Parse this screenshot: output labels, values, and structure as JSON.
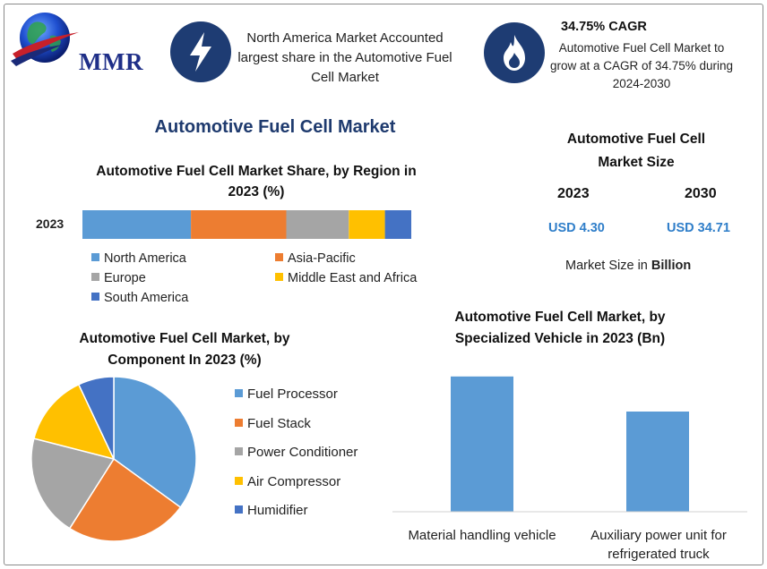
{
  "logo": {
    "text": "MMR",
    "icon": "globe-icon"
  },
  "header": {
    "left_icon": "lightning-bolt-icon",
    "left_text": "North America Market Accounted largest share in the Automotive Fuel Cell Market",
    "right_icon": "flame-icon",
    "right_title": "34.75% CAGR",
    "right_text": "Automotive Fuel Cell Market to grow at a CAGR of 34.75% during 2024-2030"
  },
  "main_title": "Automotive Fuel Cell Market",
  "market_size": {
    "title": "Automotive Fuel Cell Market Size",
    "year_a": "2023",
    "year_b": "2030",
    "value_a": "USD 4.30",
    "value_b": "USD 34.71",
    "note_prefix": "Market Size in ",
    "note_bold": "Billion"
  },
  "colors": {
    "blue": "#5b9bd5",
    "orange": "#ed7d31",
    "gray": "#a5a5a5",
    "yellow": "#ffc000",
    "dark_blue": "#4472c4",
    "navy": "#1e3c73",
    "value_blue": "#2f7ec9"
  },
  "chart_data": [
    {
      "type": "bar",
      "stacked": true,
      "orientation": "horizontal",
      "title": "Automotive Fuel Cell Market Share, by Region in 2023 (%)",
      "categories": [
        "2023"
      ],
      "series": [
        {
          "name": "North America",
          "values": [
            33
          ],
          "color": "#5b9bd5"
        },
        {
          "name": "Asia-Pacific",
          "values": [
            29
          ],
          "color": "#ed7d31"
        },
        {
          "name": "Europe",
          "values": [
            19
          ],
          "color": "#a5a5a5"
        },
        {
          "name": "Middle East and Africa",
          "values": [
            11
          ],
          "color": "#ffc000"
        },
        {
          "name": "South America",
          "values": [
            8
          ],
          "color": "#4472c4"
        }
      ],
      "legend": "bottom"
    },
    {
      "type": "pie",
      "title": "Automotive Fuel Cell Market, by Component In 2023 (%)",
      "labels": [
        "Fuel Processor",
        "Fuel Stack",
        "Power Conditioner",
        "Air Compressor",
        "Humidifier"
      ],
      "values": [
        35,
        24,
        20,
        14,
        7
      ],
      "colors": [
        "#5b9bd5",
        "#ed7d31",
        "#a5a5a5",
        "#ffc000",
        "#4472c4"
      ],
      "legend": "right"
    },
    {
      "type": "bar",
      "title": "Automotive Fuel Cell Market, by Specialized Vehicle in 2023 (Bn)",
      "categories": [
        "Material handling vehicle",
        "Auxiliary power unit for refrigerated truck"
      ],
      "values": [
        2.7,
        2.0
      ],
      "ylim": [
        0,
        3.0
      ],
      "color": "#5b9bd5",
      "grid": false
    }
  ]
}
